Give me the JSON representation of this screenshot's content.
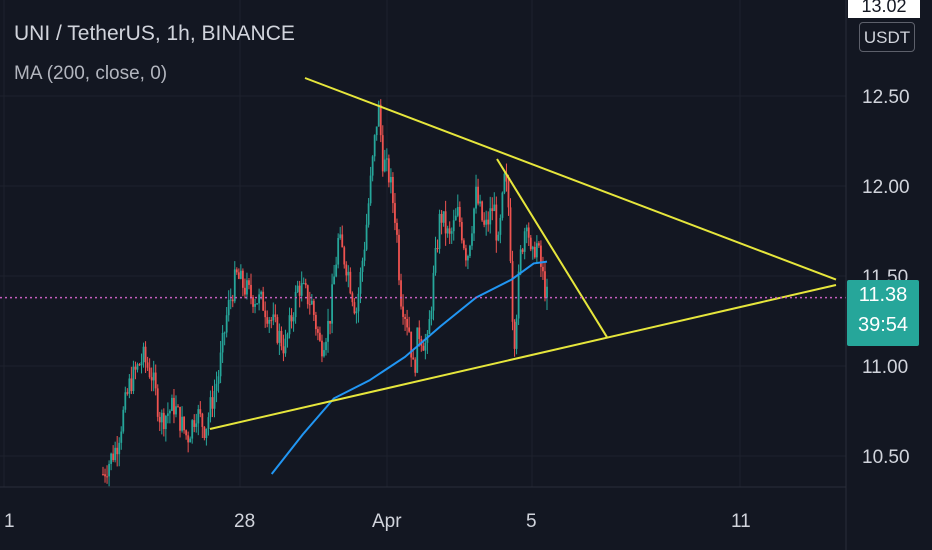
{
  "header": {
    "symbol_line": "UNI / TetherUS, 1h, BINANCE",
    "indicator_line": "MA (200, close, 0)"
  },
  "axis": {
    "currency_button": "USDT",
    "top_price_tag": "13.02",
    "y_ticks": [
      "12.50",
      "12.00",
      "11.50",
      "11.00",
      "10.50"
    ],
    "x_ticks": [
      "1",
      "28",
      "Apr",
      "5",
      "11"
    ]
  },
  "price_tag": {
    "price": "11.38",
    "countdown": "39:54"
  },
  "colors": {
    "background": "#131722",
    "grid": "#1e222d",
    "up_candle": "#26a69a",
    "down_candle": "#ef5350",
    "ma_line": "#2196f3",
    "trendlines": "#e6e63c",
    "price_line": "#c65cc0",
    "price_tag_bg": "#26a69a"
  },
  "chart_data": {
    "type": "candlestick",
    "title": "UNI / TetherUS, 1h, BINANCE",
    "indicator": "MA (200, close, 0)",
    "ylim": [
      10.4,
      13.0
    ],
    "y_ticks": [
      12.5,
      12.0,
      11.5,
      11.0,
      10.5
    ],
    "x_ticks": [
      "1",
      "28",
      "Apr",
      "5",
      "11"
    ],
    "last_price": 11.38,
    "bar_countdown": "39:54",
    "grid": true,
    "price_path": [
      {
        "t": 0,
        "p": 10.4
      },
      {
        "t": 0.03,
        "p": 10.55
      },
      {
        "t": 0.06,
        "p": 10.9
      },
      {
        "t": 0.09,
        "p": 11.05
      },
      {
        "t": 0.11,
        "p": 10.95
      },
      {
        "t": 0.13,
        "p": 10.7
      },
      {
        "t": 0.16,
        "p": 10.78
      },
      {
        "t": 0.19,
        "p": 10.6
      },
      {
        "t": 0.21,
        "p": 10.75
      },
      {
        "t": 0.23,
        "p": 10.65
      },
      {
        "t": 0.26,
        "p": 10.95
      },
      {
        "t": 0.28,
        "p": 11.3
      },
      {
        "t": 0.3,
        "p": 11.5
      },
      {
        "t": 0.33,
        "p": 11.4
      },
      {
        "t": 0.36,
        "p": 11.35
      },
      {
        "t": 0.39,
        "p": 11.2
      },
      {
        "t": 0.41,
        "p": 11.1
      },
      {
        "t": 0.44,
        "p": 11.45
      },
      {
        "t": 0.47,
        "p": 11.35
      },
      {
        "t": 0.49,
        "p": 11.1
      },
      {
        "t": 0.51,
        "p": 11.25
      },
      {
        "t": 0.53,
        "p": 11.7
      },
      {
        "t": 0.55,
        "p": 11.55
      },
      {
        "t": 0.57,
        "p": 11.3
      },
      {
        "t": 0.59,
        "p": 11.7
      },
      {
        "t": 0.61,
        "p": 12.2
      },
      {
        "t": 0.62,
        "p": 12.45
      },
      {
        "t": 0.63,
        "p": 12.15
      },
      {
        "t": 0.645,
        "p": 12.05
      },
      {
        "t": 0.66,
        "p": 11.8
      },
      {
        "t": 0.67,
        "p": 11.4
      },
      {
        "t": 0.69,
        "p": 11.2
      },
      {
        "t": 0.7,
        "p": 10.95
      },
      {
        "t": 0.71,
        "p": 11.2
      },
      {
        "t": 0.73,
        "p": 11.1
      },
      {
        "t": 0.745,
        "p": 11.5
      },
      {
        "t": 0.76,
        "p": 11.85
      },
      {
        "t": 0.78,
        "p": 11.7
      },
      {
        "t": 0.8,
        "p": 11.85
      },
      {
        "t": 0.82,
        "p": 11.6
      },
      {
        "t": 0.84,
        "p": 11.95
      },
      {
        "t": 0.86,
        "p": 11.75
      },
      {
        "t": 0.88,
        "p": 11.9
      },
      {
        "t": 0.89,
        "p": 11.65
      },
      {
        "t": 0.905,
        "p": 12.05
      },
      {
        "t": 0.915,
        "p": 11.85
      },
      {
        "t": 0.925,
        "p": 11.1
      },
      {
        "t": 0.94,
        "p": 11.6
      },
      {
        "t": 0.955,
        "p": 11.85
      },
      {
        "t": 0.965,
        "p": 11.55
      },
      {
        "t": 0.975,
        "p": 11.7
      },
      {
        "t": 0.99,
        "p": 11.5
      },
      {
        "t": 1.0,
        "p": 11.38
      }
    ],
    "ma_path": [
      {
        "t": 0.38,
        "p": 10.4
      },
      {
        "t": 0.45,
        "p": 10.62
      },
      {
        "t": 0.52,
        "p": 10.82
      },
      {
        "t": 0.6,
        "p": 10.92
      },
      {
        "t": 0.68,
        "p": 11.05
      },
      {
        "t": 0.76,
        "p": 11.22
      },
      {
        "t": 0.84,
        "p": 11.38
      },
      {
        "t": 0.92,
        "p": 11.48
      },
      {
        "t": 0.97,
        "p": 11.57
      },
      {
        "t": 1.0,
        "p": 11.58
      }
    ],
    "trendlines": [
      {
        "name": "upper",
        "from": 12.6,
        "to": 11.48
      },
      {
        "name": "lower",
        "from": 10.65,
        "to": 11.45
      },
      {
        "name": "steep",
        "from": 12.15,
        "to": 11.16
      }
    ]
  }
}
